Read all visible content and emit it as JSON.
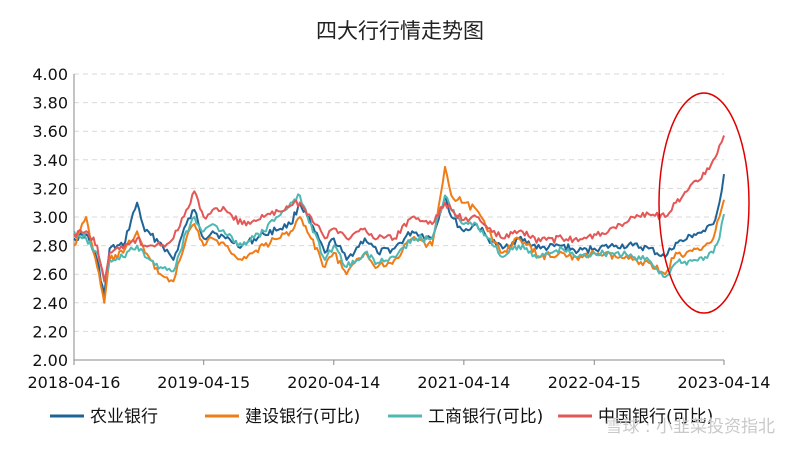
{
  "chart_data": {
    "type": "line",
    "title": "四大行行情走势图",
    "xlabel": "",
    "ylabel": "",
    "ylim": [
      2.0,
      4.0
    ],
    "yticks": [
      "2.00",
      "2.20",
      "2.40",
      "2.60",
      "2.80",
      "3.00",
      "3.20",
      "3.40",
      "3.60",
      "3.80",
      "4.00"
    ],
    "xticks": [
      "2018-04-16",
      "2019-04-15",
      "2020-04-14",
      "2021-04-14",
      "2022-04-15",
      "2023-04-14"
    ],
    "xlim": [
      "2018-04-16",
      "2023-04-14"
    ],
    "grid": "horizontal",
    "legend_position": "bottom",
    "annotation": "red ellipse highlighting late 2022 – 2023 rally",
    "series": [
      {
        "name": "农业银行",
        "color": "#1f6496",
        "points": [
          [
            "2018-04-16",
            2.85
          ],
          [
            "2018-05-20",
            2.88
          ],
          [
            "2018-06-20",
            2.7
          ],
          [
            "2018-07-10",
            2.45
          ],
          [
            "2018-07-25",
            2.78
          ],
          [
            "2018-09-01",
            2.8
          ],
          [
            "2018-10-10",
            3.1
          ],
          [
            "2018-11-01",
            2.9
          ],
          [
            "2018-12-15",
            2.82
          ],
          [
            "2019-01-20",
            2.7
          ],
          [
            "2019-02-25",
            2.95
          ],
          [
            "2019-03-20",
            3.05
          ],
          [
            "2019-04-15",
            2.85
          ],
          [
            "2019-05-10",
            2.9
          ],
          [
            "2019-06-15",
            2.85
          ],
          [
            "2019-08-01",
            2.8
          ],
          [
            "2019-10-01",
            2.88
          ],
          [
            "2019-12-15",
            2.95
          ],
          [
            "2020-01-10",
            3.1
          ],
          [
            "2020-02-10",
            2.95
          ],
          [
            "2020-03-20",
            2.75
          ],
          [
            "2020-04-14",
            2.85
          ],
          [
            "2020-05-20",
            2.7
          ],
          [
            "2020-07-10",
            2.85
          ],
          [
            "2020-08-15",
            2.75
          ],
          [
            "2020-10-01",
            2.78
          ],
          [
            "2020-11-20",
            2.9
          ],
          [
            "2021-01-15",
            2.85
          ],
          [
            "2021-02-20",
            3.15
          ],
          [
            "2021-03-10",
            3.0
          ],
          [
            "2021-04-14",
            2.9
          ],
          [
            "2021-05-20",
            2.95
          ],
          [
            "2021-06-20",
            2.85
          ],
          [
            "2021-08-01",
            2.78
          ],
          [
            "2021-09-15",
            2.85
          ],
          [
            "2021-11-15",
            2.78
          ],
          [
            "2022-01-15",
            2.8
          ],
          [
            "2022-03-01",
            2.76
          ],
          [
            "2022-04-15",
            2.78
          ],
          [
            "2022-06-15",
            2.8
          ],
          [
            "2022-08-01",
            2.8
          ],
          [
            "2022-09-15",
            2.78
          ],
          [
            "2022-10-31",
            2.72
          ],
          [
            "2022-11-30",
            2.82
          ],
          [
            "2022-12-20",
            2.83
          ],
          [
            "2023-01-20",
            2.88
          ],
          [
            "2023-02-20",
            2.9
          ],
          [
            "2023-03-15",
            2.95
          ],
          [
            "2023-04-01",
            3.1
          ],
          [
            "2023-04-14",
            3.3
          ]
        ]
      },
      {
        "name": "建设银行(可比)",
        "color": "#f07c17",
        "points": [
          [
            "2018-04-16",
            2.8
          ],
          [
            "2018-05-20",
            3.0
          ],
          [
            "2018-06-20",
            2.65
          ],
          [
            "2018-07-10",
            2.4
          ],
          [
            "2018-07-25",
            2.7
          ],
          [
            "2018-09-01",
            2.75
          ],
          [
            "2018-10-10",
            2.9
          ],
          [
            "2018-11-01",
            2.75
          ],
          [
            "2018-12-15",
            2.6
          ],
          [
            "2019-01-20",
            2.55
          ],
          [
            "2019-02-25",
            2.85
          ],
          [
            "2019-03-20",
            2.95
          ],
          [
            "2019-04-15",
            2.8
          ],
          [
            "2019-05-10",
            2.85
          ],
          [
            "2019-06-15",
            2.8
          ],
          [
            "2019-08-01",
            2.7
          ],
          [
            "2019-10-01",
            2.8
          ],
          [
            "2019-12-15",
            2.9
          ],
          [
            "2020-01-10",
            3.0
          ],
          [
            "2020-02-10",
            2.85
          ],
          [
            "2020-03-20",
            2.65
          ],
          [
            "2020-04-14",
            2.75
          ],
          [
            "2020-05-20",
            2.6
          ],
          [
            "2020-07-10",
            2.75
          ],
          [
            "2020-08-15",
            2.65
          ],
          [
            "2020-10-01",
            2.7
          ],
          [
            "2020-11-20",
            2.85
          ],
          [
            "2021-01-15",
            2.8
          ],
          [
            "2021-02-20",
            3.35
          ],
          [
            "2021-03-10",
            3.15
          ],
          [
            "2021-04-14",
            3.1
          ],
          [
            "2021-05-20",
            3.05
          ],
          [
            "2021-06-20",
            2.9
          ],
          [
            "2021-08-01",
            2.75
          ],
          [
            "2021-09-15",
            2.85
          ],
          [
            "2021-11-15",
            2.72
          ],
          [
            "2022-01-15",
            2.75
          ],
          [
            "2022-03-01",
            2.7
          ],
          [
            "2022-04-15",
            2.75
          ],
          [
            "2022-06-15",
            2.72
          ],
          [
            "2022-08-01",
            2.7
          ],
          [
            "2022-09-15",
            2.68
          ],
          [
            "2022-10-31",
            2.6
          ],
          [
            "2022-11-30",
            2.75
          ],
          [
            "2022-12-20",
            2.72
          ],
          [
            "2023-01-20",
            2.78
          ],
          [
            "2023-02-20",
            2.8
          ],
          [
            "2023-03-15",
            2.85
          ],
          [
            "2023-04-01",
            3.0
          ],
          [
            "2023-04-14",
            3.12
          ]
        ]
      },
      {
        "name": "工商银行(可比)",
        "color": "#4fb8b2",
        "points": [
          [
            "2018-04-16",
            2.9
          ],
          [
            "2018-05-20",
            2.85
          ],
          [
            "2018-06-20",
            2.75
          ],
          [
            "2018-07-10",
            2.55
          ],
          [
            "2018-07-25",
            2.7
          ],
          [
            "2018-09-01",
            2.72
          ],
          [
            "2018-10-10",
            2.8
          ],
          [
            "2018-11-01",
            2.72
          ],
          [
            "2018-12-15",
            2.65
          ],
          [
            "2019-01-20",
            2.62
          ],
          [
            "2019-02-25",
            2.9
          ],
          [
            "2019-03-20",
            3.0
          ],
          [
            "2019-04-15",
            2.9
          ],
          [
            "2019-05-10",
            2.95
          ],
          [
            "2019-06-15",
            2.88
          ],
          [
            "2019-08-01",
            2.8
          ],
          [
            "2019-10-01",
            2.9
          ],
          [
            "2019-12-15",
            3.1
          ],
          [
            "2020-01-10",
            3.15
          ],
          [
            "2020-02-10",
            2.95
          ],
          [
            "2020-03-20",
            2.7
          ],
          [
            "2020-04-14",
            2.8
          ],
          [
            "2020-05-20",
            2.65
          ],
          [
            "2020-07-10",
            2.75
          ],
          [
            "2020-08-15",
            2.68
          ],
          [
            "2020-10-01",
            2.72
          ],
          [
            "2020-11-20",
            2.85
          ],
          [
            "2021-01-15",
            2.85
          ],
          [
            "2021-02-20",
            3.15
          ],
          [
            "2021-03-10",
            3.05
          ],
          [
            "2021-04-14",
            2.95
          ],
          [
            "2021-05-20",
            2.95
          ],
          [
            "2021-06-20",
            2.85
          ],
          [
            "2021-08-01",
            2.72
          ],
          [
            "2021-09-15",
            2.8
          ],
          [
            "2021-11-15",
            2.72
          ],
          [
            "2022-01-15",
            2.78
          ],
          [
            "2022-03-01",
            2.72
          ],
          [
            "2022-04-15",
            2.75
          ],
          [
            "2022-06-15",
            2.75
          ],
          [
            "2022-08-01",
            2.72
          ],
          [
            "2022-09-15",
            2.7
          ],
          [
            "2022-10-31",
            2.58
          ],
          [
            "2022-11-30",
            2.68
          ],
          [
            "2022-12-20",
            2.68
          ],
          [
            "2023-01-20",
            2.7
          ],
          [
            "2023-02-20",
            2.72
          ],
          [
            "2023-03-15",
            2.75
          ],
          [
            "2023-04-01",
            2.85
          ],
          [
            "2023-04-14",
            3.02
          ]
        ]
      },
      {
        "name": "中国银行(可比)",
        "color": "#e45757",
        "points": [
          [
            "2018-04-16",
            2.88
          ],
          [
            "2018-05-20",
            2.9
          ],
          [
            "2018-06-20",
            2.8
          ],
          [
            "2018-07-10",
            2.55
          ],
          [
            "2018-07-25",
            2.75
          ],
          [
            "2018-09-01",
            2.78
          ],
          [
            "2018-10-10",
            2.85
          ],
          [
            "2018-11-01",
            2.8
          ],
          [
            "2018-12-15",
            2.8
          ],
          [
            "2019-01-20",
            2.85
          ],
          [
            "2019-02-25",
            3.05
          ],
          [
            "2019-03-20",
            3.18
          ],
          [
            "2019-04-15",
            3.0
          ],
          [
            "2019-05-10",
            3.05
          ],
          [
            "2019-06-15",
            3.05
          ],
          [
            "2019-08-01",
            2.95
          ],
          [
            "2019-10-01",
            3.0
          ],
          [
            "2019-12-15",
            3.08
          ],
          [
            "2020-01-10",
            3.1
          ],
          [
            "2020-02-10",
            3.0
          ],
          [
            "2020-03-20",
            2.85
          ],
          [
            "2020-04-14",
            2.92
          ],
          [
            "2020-05-20",
            2.85
          ],
          [
            "2020-07-10",
            2.92
          ],
          [
            "2020-08-15",
            2.85
          ],
          [
            "2020-10-01",
            2.85
          ],
          [
            "2020-11-20",
            3.0
          ],
          [
            "2021-01-15",
            2.95
          ],
          [
            "2021-02-20",
            3.1
          ],
          [
            "2021-03-10",
            3.05
          ],
          [
            "2021-04-14",
            2.98
          ],
          [
            "2021-05-20",
            3.0
          ],
          [
            "2021-06-20",
            2.92
          ],
          [
            "2021-08-01",
            2.85
          ],
          [
            "2021-09-15",
            2.9
          ],
          [
            "2021-11-15",
            2.83
          ],
          [
            "2022-01-15",
            2.85
          ],
          [
            "2022-03-01",
            2.83
          ],
          [
            "2022-04-15",
            2.88
          ],
          [
            "2022-06-15",
            2.92
          ],
          [
            "2022-08-01",
            3.0
          ],
          [
            "2022-09-15",
            3.02
          ],
          [
            "2022-10-31",
            3.0
          ],
          [
            "2022-11-30",
            3.1
          ],
          [
            "2022-12-20",
            3.15
          ],
          [
            "2023-01-20",
            3.25
          ],
          [
            "2023-02-20",
            3.3
          ],
          [
            "2023-03-15",
            3.4
          ],
          [
            "2023-04-01",
            3.5
          ],
          [
            "2023-04-14",
            3.57
          ]
        ]
      }
    ]
  },
  "watermark": "雪球 : 小韭菜投资指北"
}
